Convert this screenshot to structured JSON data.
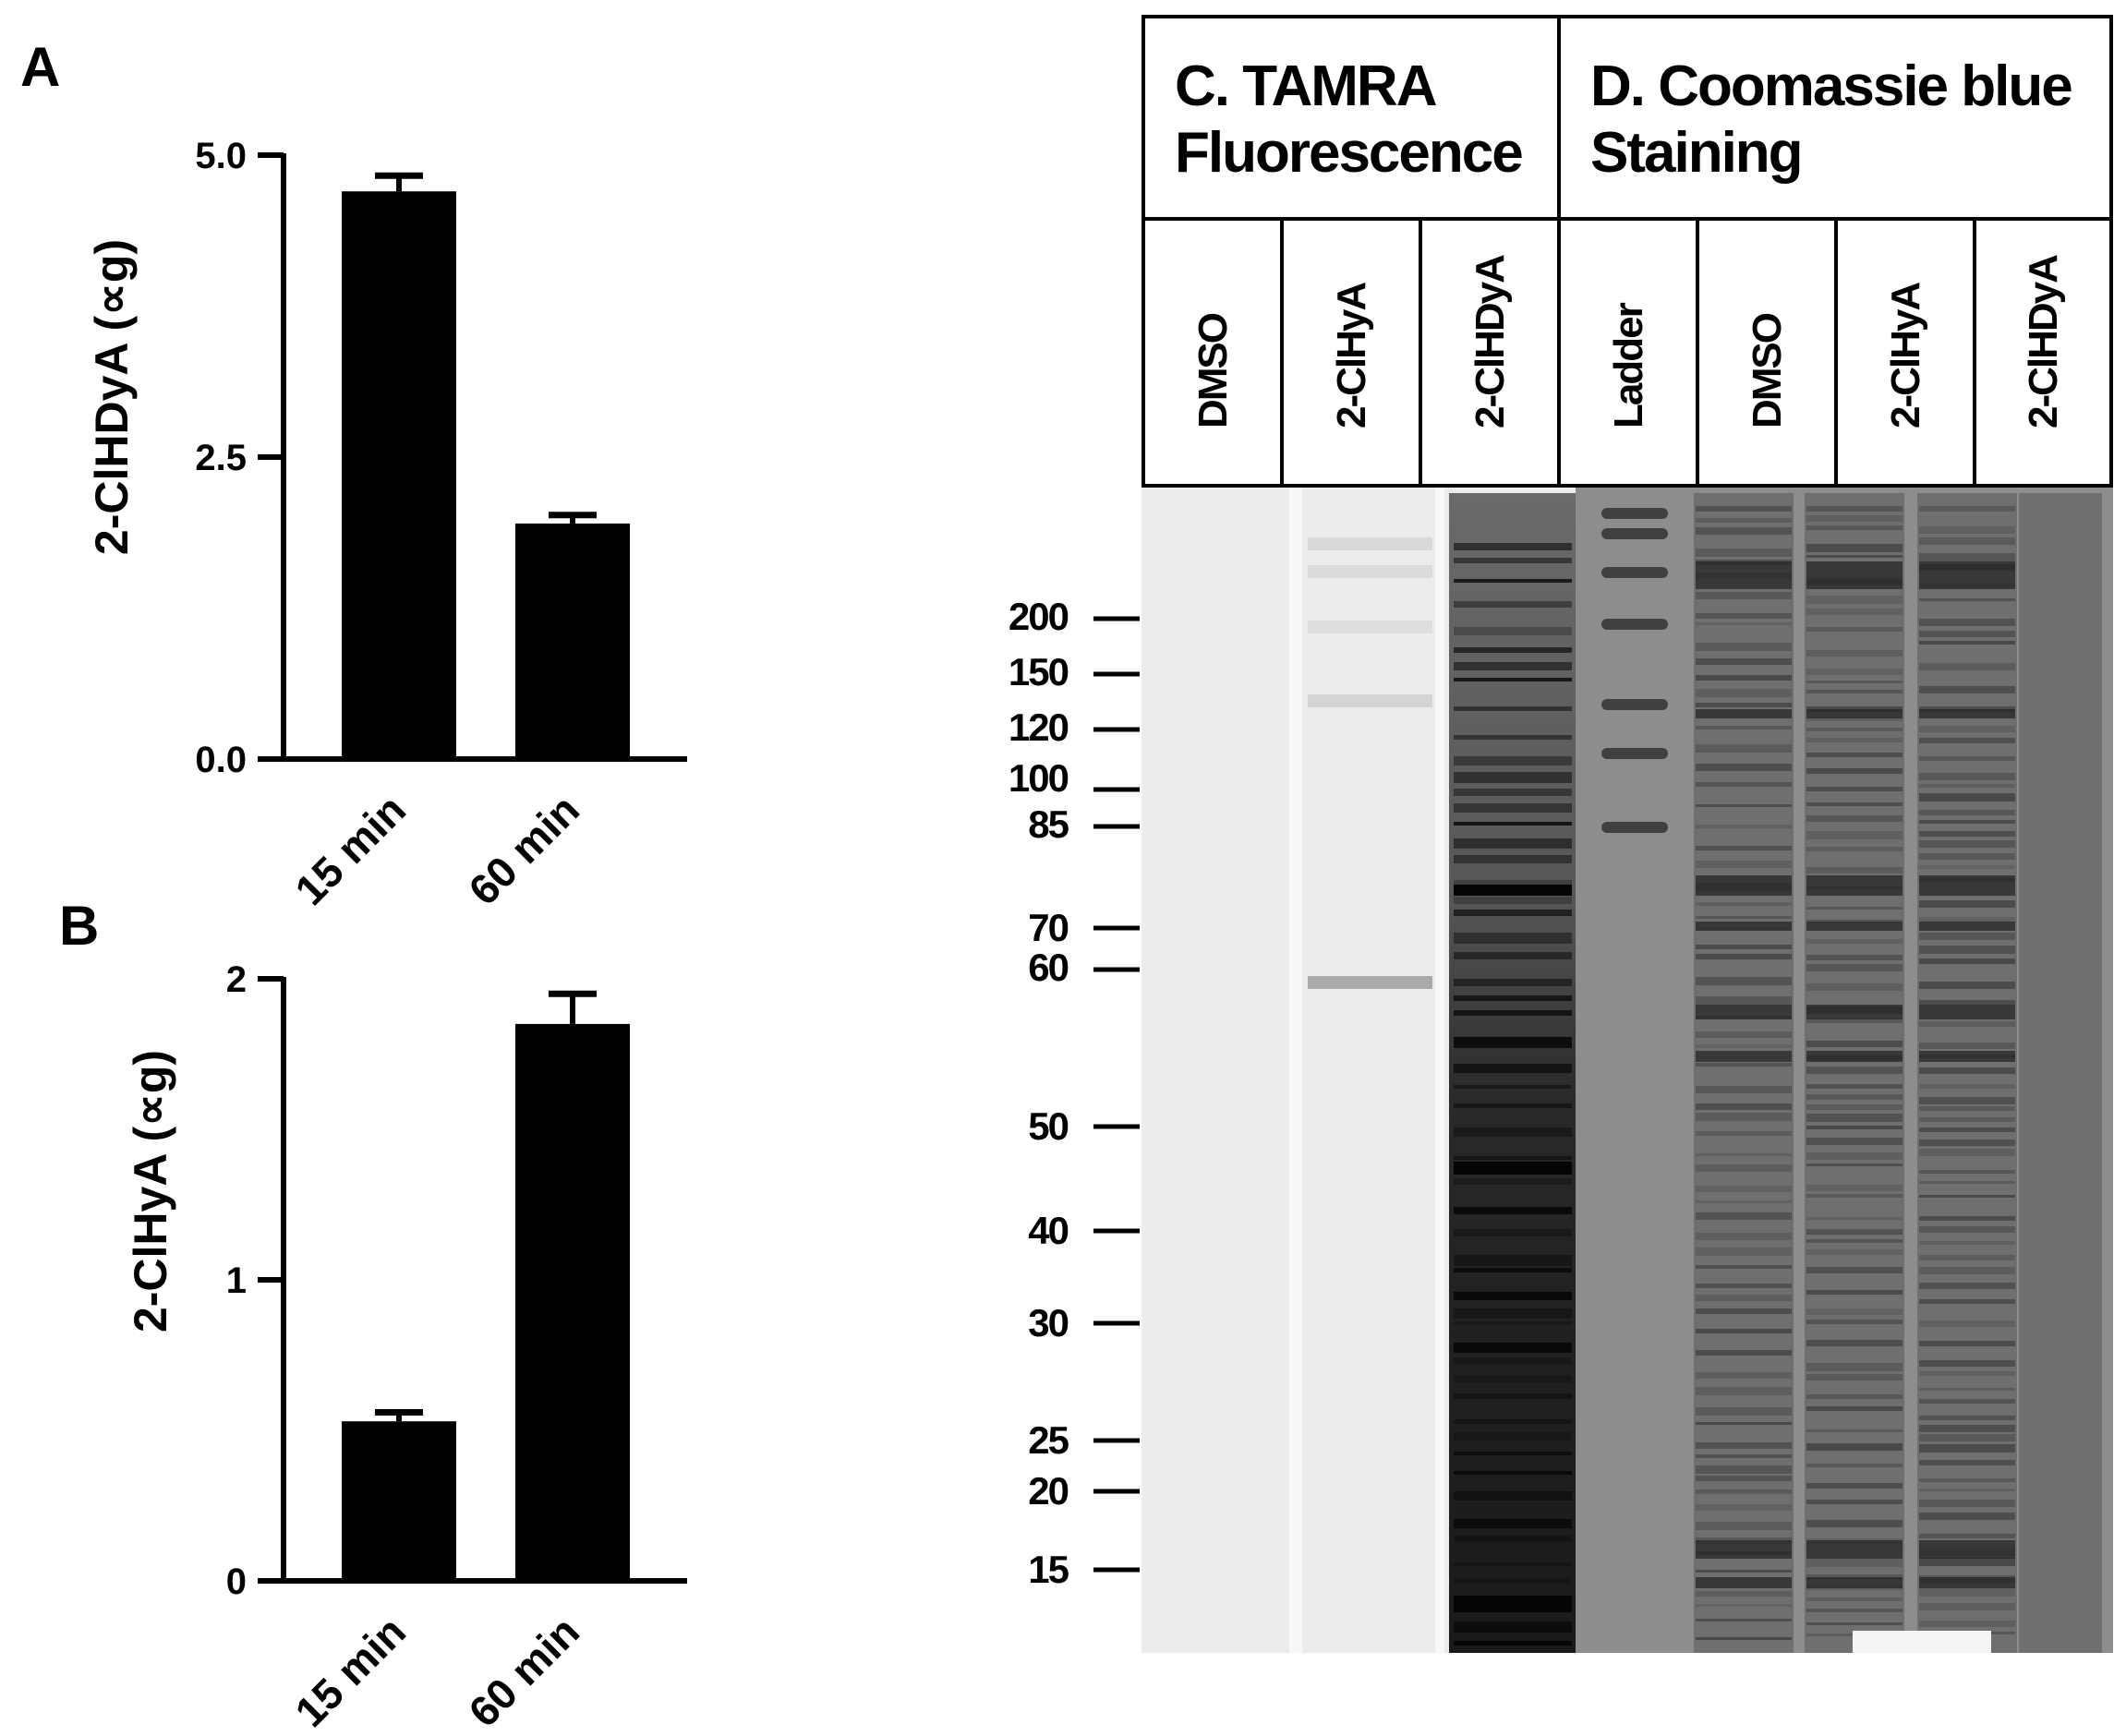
{
  "panels": {
    "a_letter": "A",
    "b_letter": "B",
    "c_header": [
      "C. TAMRA",
      "Fluorescence"
    ],
    "d_header": [
      "D. Coomassie blue",
      "Staining"
    ]
  },
  "chart_data": [
    {
      "type": "bar",
      "panel": "A",
      "categories": [
        "15 min",
        "60 min"
      ],
      "values": [
        4.7,
        1.95
      ],
      "errors": [
        0.13,
        0.07
      ],
      "ylabel": "2-ClHDyA (∝g)",
      "ylim": [
        0,
        5.0
      ],
      "yticks": [
        "0.0",
        "2.5",
        "5.0"
      ],
      "ytick_values": [
        0,
        2.5,
        5.0
      ],
      "bar_color": "#000000"
    },
    {
      "type": "bar",
      "panel": "B",
      "categories": [
        "15 min",
        "60 min"
      ],
      "values": [
        0.53,
        1.85
      ],
      "errors": [
        0.03,
        0.1
      ],
      "ylabel": "2-ClHyA (∝g)",
      "ylim": [
        0,
        2
      ],
      "yticks": [
        "0",
        "1",
        "2"
      ],
      "ytick_values": [
        0,
        1,
        2
      ],
      "bar_color": "#000000"
    }
  ],
  "gel": {
    "lanes": [
      "DMSO",
      "2-ClHyA",
      "2-ClHDyA",
      "Ladder",
      "DMSO",
      "2-ClHyA",
      "2-ClHDyA"
    ],
    "mw_markers": [
      "200",
      "150",
      "120",
      "100",
      "85",
      "70",
      "60",
      "50",
      "40",
      "30",
      "25",
      "20",
      "15"
    ],
    "colors": {
      "fluorescence_bg": "#ececec",
      "coomassie_bg": "#8d8d8d",
      "band_dark": "#1a1a1a"
    }
  }
}
